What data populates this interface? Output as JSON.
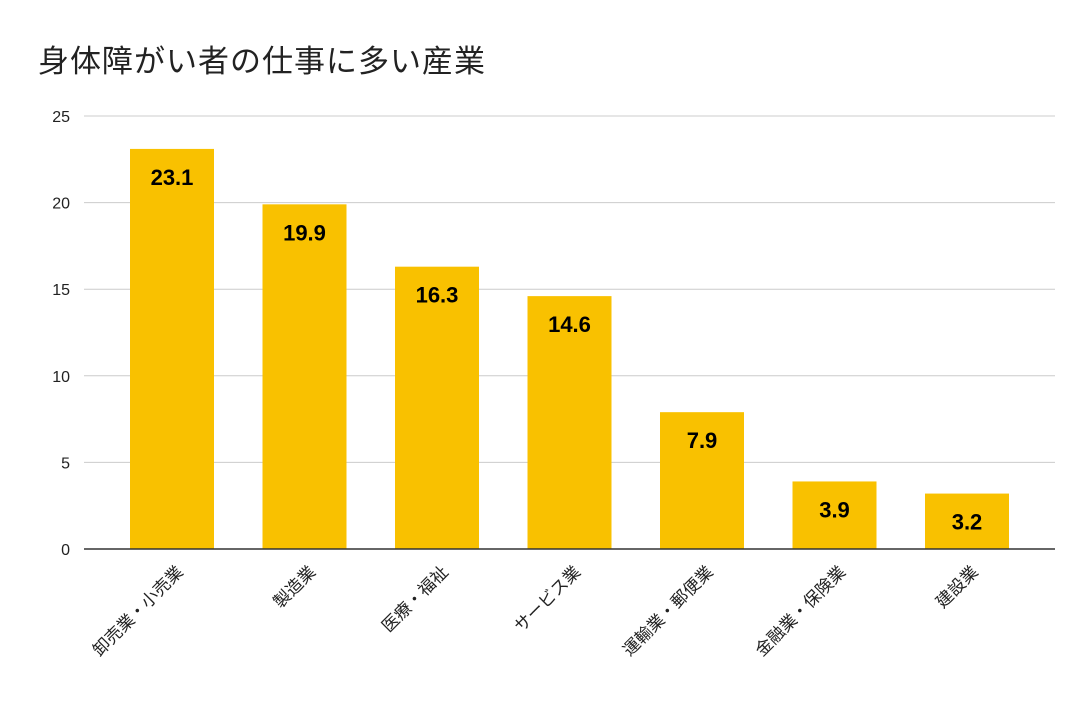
{
  "chart_data": {
    "type": "bar",
    "title": "身体障がい者の仕事に多い産業",
    "categories": [
      "卸売業・小売業",
      "製造業",
      "医療・福祉",
      "サービス業",
      "運輸業・郵便業",
      "金融業・保険業",
      "建設業"
    ],
    "values": [
      23.1,
      19.9,
      16.3,
      14.6,
      7.9,
      3.9,
      3.2
    ],
    "data_labels": [
      "23.1",
      "19.9",
      "16.3",
      "14.6",
      "7.9",
      "3.9",
      "3.2"
    ],
    "y_ticks": [
      0,
      5,
      10,
      15,
      20,
      25
    ],
    "ylim": [
      0,
      25
    ],
    "xlabel": "",
    "ylabel": "",
    "grid": true,
    "legend": "none",
    "bar_color": "#F9C100",
    "grid_color": "#CCCCCC",
    "axis_color": "#333333"
  }
}
